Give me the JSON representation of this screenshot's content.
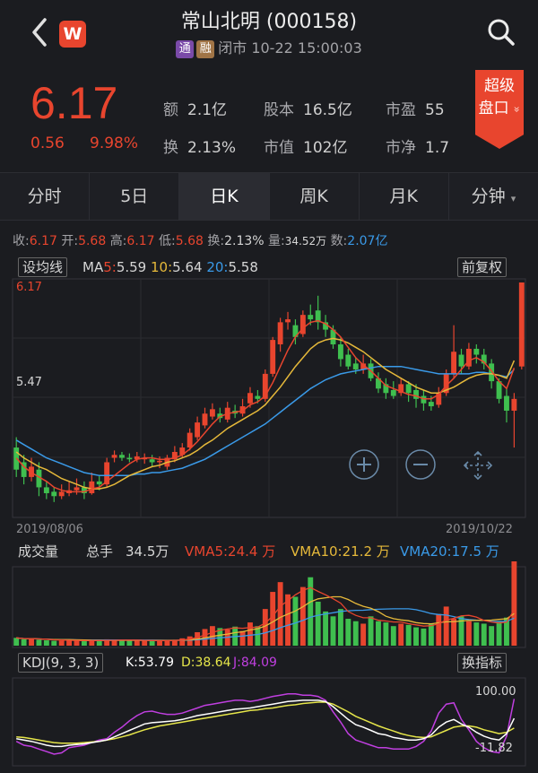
{
  "header": {
    "title": "常山北明 (000158)",
    "tag_tong": "通",
    "tag_rong": "融",
    "status": "闭市 10-22 15:00:03",
    "logo_letter": "W"
  },
  "quote": {
    "price": "6.17",
    "change": "0.56",
    "change_pct": "9.98%",
    "fields": [
      {
        "k": "额",
        "v": "2.1亿"
      },
      {
        "k": "股本",
        "v": "16.5亿"
      },
      {
        "k": "市盈",
        "v": "55"
      },
      {
        "k": "换",
        "v": "2.13%"
      },
      {
        "k": "市值",
        "v": "102亿"
      },
      {
        "k": "市净",
        "v": "1.7"
      }
    ],
    "super_label_1": "超级",
    "super_label_2": "盘口",
    "super_chevron": "»"
  },
  "tabs": [
    "分时",
    "5日",
    "日K",
    "周K",
    "月K",
    "分钟"
  ],
  "active_tab": 2,
  "info": {
    "shou_k": "收:",
    "shou_v": "6.17",
    "kai_k": "开:",
    "kai_v": "5.68",
    "gao_k": "高:",
    "gao_v": "6.17",
    "di_k": "低:",
    "di_v": "5.68",
    "huan_k": "换:",
    "huan_v": "2.13%",
    "liang_k": "量:",
    "liang_v": "34.52万",
    "shu_k": "数:",
    "shu_v": "2.07亿"
  },
  "kline": {
    "setting_label": "设均线",
    "fuquan_label": "前复权",
    "ma_prefix": "MA",
    "ma5_k": "5:",
    "ma5_v": "5.59",
    "ma10_k": "10:",
    "ma10_v": "5.64",
    "ma20_k": "20:",
    "ma20_v": "5.58",
    "y_high": "6.17",
    "y_mid": "5.47",
    "date_start": "2019/08/06",
    "date_end": "2019/10/22"
  },
  "volume": {
    "label": "成交量",
    "total_label": "总手",
    "total_value": "34.5万",
    "vma5": "VMA5:24.4 万",
    "vma10": "VMA10:21.2 万",
    "vma20": "VMA20:17.5 万"
  },
  "kdj": {
    "label": "KDJ(9, 3, 3)",
    "k": "K:53.79",
    "d": "D:38.64",
    "j": "J:84.09",
    "switch_label": "换指标",
    "y_top": "100.00",
    "y_bottom": "-11.82"
  },
  "colors": {
    "up": "#e8452e",
    "down": "#3fbf4f",
    "ma5": "#e8452e",
    "ma10": "#e6b93a",
    "ma20": "#3a9ae8",
    "kdj_k": "#ffffff",
    "kdj_d": "#e6e64a",
    "kdj_j": "#c03fe0",
    "background": "#1b1c20"
  },
  "chart_data": {
    "type": "candlestick",
    "x_range": [
      "2019/08/06",
      "2019/10/22"
    ],
    "ylim": [
      4.6,
      6.17
    ],
    "candles": [
      {
        "o": 5.05,
        "c": 4.9,
        "h": 5.12,
        "l": 4.85
      },
      {
        "o": 4.95,
        "c": 4.85,
        "h": 5.0,
        "l": 4.8
      },
      {
        "o": 4.85,
        "c": 4.92,
        "h": 4.98,
        "l": 4.82
      },
      {
        "o": 4.9,
        "c": 4.78,
        "h": 4.95,
        "l": 4.72
      },
      {
        "o": 4.78,
        "c": 4.74,
        "h": 4.82,
        "l": 4.7
      },
      {
        "o": 4.75,
        "c": 4.72,
        "h": 4.78,
        "l": 4.68
      },
      {
        "o": 4.72,
        "c": 4.75,
        "h": 4.8,
        "l": 4.7
      },
      {
        "o": 4.74,
        "c": 4.76,
        "h": 4.82,
        "l": 4.72
      },
      {
        "o": 4.76,
        "c": 4.78,
        "h": 4.84,
        "l": 4.73
      },
      {
        "o": 4.78,
        "c": 4.74,
        "h": 4.82,
        "l": 4.7
      },
      {
        "o": 4.74,
        "c": 4.82,
        "h": 4.88,
        "l": 4.73
      },
      {
        "o": 4.82,
        "c": 4.8,
        "h": 4.86,
        "l": 4.76
      },
      {
        "o": 4.8,
        "c": 4.95,
        "h": 4.98,
        "l": 4.78
      },
      {
        "o": 4.98,
        "c": 5.0,
        "h": 5.03,
        "l": 4.95
      },
      {
        "o": 5.0,
        "c": 4.98,
        "h": 5.02,
        "l": 4.96
      },
      {
        "o": 4.98,
        "c": 4.97,
        "h": 5.01,
        "l": 4.95
      },
      {
        "o": 4.97,
        "c": 4.99,
        "h": 5.02,
        "l": 4.95
      },
      {
        "o": 4.97,
        "c": 4.98,
        "h": 5.01,
        "l": 4.94
      },
      {
        "o": 4.97,
        "c": 4.95,
        "h": 5.0,
        "l": 4.92
      },
      {
        "o": 4.95,
        "c": 4.96,
        "h": 4.99,
        "l": 4.91
      },
      {
        "o": 4.92,
        "c": 4.98,
        "h": 5.0,
        "l": 4.9
      },
      {
        "o": 4.97,
        "c": 5.02,
        "h": 5.06,
        "l": 4.95
      },
      {
        "o": 5.0,
        "c": 5.05,
        "h": 5.08,
        "l": 4.98
      },
      {
        "o": 5.05,
        "c": 5.15,
        "h": 5.18,
        "l": 5.03
      },
      {
        "o": 5.12,
        "c": 5.22,
        "h": 5.26,
        "l": 5.1
      },
      {
        "o": 5.2,
        "c": 5.28,
        "h": 5.32,
        "l": 5.18
      },
      {
        "o": 5.26,
        "c": 5.31,
        "h": 5.35,
        "l": 5.24
      },
      {
        "o": 5.28,
        "c": 5.25,
        "h": 5.32,
        "l": 5.22
      },
      {
        "o": 5.24,
        "c": 5.32,
        "h": 5.36,
        "l": 5.22
      },
      {
        "o": 5.3,
        "c": 5.28,
        "h": 5.34,
        "l": 5.25
      },
      {
        "o": 5.28,
        "c": 5.33,
        "h": 5.38,
        "l": 5.26
      },
      {
        "o": 5.35,
        "c": 5.42,
        "h": 5.46,
        "l": 5.32
      },
      {
        "o": 5.4,
        "c": 5.38,
        "h": 5.44,
        "l": 5.35
      },
      {
        "o": 5.38,
        "c": 5.55,
        "h": 5.58,
        "l": 5.36
      },
      {
        "o": 5.55,
        "c": 5.78,
        "h": 5.8,
        "l": 5.53
      },
      {
        "o": 5.75,
        "c": 5.9,
        "h": 5.93,
        "l": 5.7
      },
      {
        "o": 5.9,
        "c": 5.92,
        "h": 5.97,
        "l": 5.85
      },
      {
        "o": 5.88,
        "c": 5.8,
        "h": 5.92,
        "l": 5.75
      },
      {
        "o": 5.82,
        "c": 5.95,
        "h": 5.98,
        "l": 5.8
      },
      {
        "o": 5.95,
        "c": 5.92,
        "h": 6.02,
        "l": 5.88
      },
      {
        "o": 5.98,
        "c": 5.9,
        "h": 6.08,
        "l": 5.85
      },
      {
        "o": 5.9,
        "c": 5.85,
        "h": 5.95,
        "l": 5.8
      },
      {
        "o": 5.85,
        "c": 5.75,
        "h": 5.88,
        "l": 5.72
      },
      {
        "o": 5.75,
        "c": 5.65,
        "h": 5.8,
        "l": 5.6
      },
      {
        "o": 5.68,
        "c": 5.6,
        "h": 5.72,
        "l": 5.58
      },
      {
        "o": 5.62,
        "c": 5.58,
        "h": 5.66,
        "l": 5.55
      },
      {
        "o": 5.58,
        "c": 5.62,
        "h": 5.68,
        "l": 5.55
      },
      {
        "o": 5.62,
        "c": 5.52,
        "h": 5.65,
        "l": 5.5
      },
      {
        "o": 5.52,
        "c": 5.45,
        "h": 5.56,
        "l": 5.42
      },
      {
        "o": 5.48,
        "c": 5.42,
        "h": 5.52,
        "l": 5.38
      },
      {
        "o": 5.44,
        "c": 5.4,
        "h": 5.5,
        "l": 5.38
      },
      {
        "o": 5.42,
        "c": 5.48,
        "h": 5.52,
        "l": 5.4
      },
      {
        "o": 5.48,
        "c": 5.42,
        "h": 5.5,
        "l": 5.36
      },
      {
        "o": 5.44,
        "c": 5.38,
        "h": 5.48,
        "l": 5.32
      },
      {
        "o": 5.4,
        "c": 5.35,
        "h": 5.44,
        "l": 5.3
      },
      {
        "o": 5.36,
        "c": 5.33,
        "h": 5.4,
        "l": 5.3
      },
      {
        "o": 5.34,
        "c": 5.42,
        "h": 5.46,
        "l": 5.32
      },
      {
        "o": 5.42,
        "c": 5.55,
        "h": 5.58,
        "l": 5.4
      },
      {
        "o": 5.55,
        "c": 5.7,
        "h": 5.88,
        "l": 5.52
      },
      {
        "o": 5.68,
        "c": 5.6,
        "h": 5.72,
        "l": 5.55
      },
      {
        "o": 5.6,
        "c": 5.72,
        "h": 5.76,
        "l": 5.58
      },
      {
        "o": 5.72,
        "c": 5.68,
        "h": 5.75,
        "l": 5.62
      },
      {
        "o": 5.68,
        "c": 5.62,
        "h": 5.72,
        "l": 5.58
      },
      {
        "o": 5.62,
        "c": 5.5,
        "h": 5.65,
        "l": 5.45
      },
      {
        "o": 5.5,
        "c": 5.38,
        "h": 5.52,
        "l": 5.35
      },
      {
        "o": 5.4,
        "c": 5.3,
        "h": 5.45,
        "l": 5.22
      },
      {
        "o": 5.3,
        "c": 5.38,
        "h": 5.42,
        "l": 5.05
      },
      {
        "o": 5.6,
        "c": 6.17,
        "h": 6.17,
        "l": 5.58
      }
    ],
    "ma5": [
      4.98,
      4.92,
      4.88,
      4.85,
      4.82,
      4.78,
      4.76,
      4.75,
      4.75,
      4.75,
      4.77,
      4.78,
      4.82,
      4.86,
      4.9,
      4.94,
      4.97,
      4.98,
      4.98,
      4.97,
      4.97,
      4.98,
      5.0,
      5.04,
      5.09,
      5.15,
      5.21,
      5.26,
      5.28,
      5.29,
      5.3,
      5.34,
      5.36,
      5.4,
      5.49,
      5.6,
      5.71,
      5.8,
      5.86,
      5.9,
      5.91,
      5.89,
      5.85,
      5.8,
      5.73,
      5.66,
      5.61,
      5.57,
      5.52,
      5.47,
      5.45,
      5.43,
      5.41,
      5.4,
      5.38,
      5.38,
      5.41,
      5.47,
      5.52,
      5.58,
      5.64,
      5.66,
      5.63,
      5.57,
      5.5,
      5.45,
      5.59
    ],
    "ma10": [
      5.02,
      4.98,
      4.95,
      4.92,
      4.9,
      4.87,
      4.84,
      4.82,
      4.8,
      4.78,
      4.77,
      4.77,
      4.78,
      4.8,
      4.83,
      4.86,
      4.88,
      4.9,
      4.92,
      4.93,
      4.95,
      4.96,
      4.98,
      5.0,
      5.03,
      5.07,
      5.1,
      5.14,
      5.18,
      5.21,
      5.24,
      5.27,
      5.3,
      5.34,
      5.4,
      5.46,
      5.53,
      5.6,
      5.66,
      5.72,
      5.76,
      5.78,
      5.79,
      5.78,
      5.76,
      5.73,
      5.7,
      5.66,
      5.62,
      5.58,
      5.55,
      5.52,
      5.49,
      5.46,
      5.44,
      5.42,
      5.42,
      5.44,
      5.46,
      5.49,
      5.52,
      5.54,
      5.55,
      5.55,
      5.54,
      5.52,
      5.64
    ],
    "ma20": [
      5.1,
      5.07,
      5.04,
      5.01,
      4.98,
      4.96,
      4.94,
      4.92,
      4.9,
      4.88,
      4.87,
      4.86,
      4.86,
      4.86,
      4.86,
      4.86,
      4.87,
      4.87,
      4.88,
      4.88,
      4.89,
      4.9,
      4.91,
      4.93,
      4.95,
      4.97,
      5.0,
      5.03,
      5.06,
      5.09,
      5.12,
      5.15,
      5.18,
      5.21,
      5.25,
      5.29,
      5.33,
      5.37,
      5.41,
      5.45,
      5.48,
      5.51,
      5.53,
      5.55,
      5.56,
      5.57,
      5.58,
      5.59,
      5.6,
      5.6,
      5.6,
      5.6,
      5.59,
      5.58,
      5.57,
      5.56,
      5.55,
      5.55,
      5.55,
      5.55,
      5.55,
      5.56,
      5.56,
      5.55,
      5.54,
      5.53,
      5.58
    ],
    "volume_wan": [
      3.2,
      2.6,
      2.8,
      2.4,
      2.2,
      2.0,
      2.1,
      2.3,
      2.0,
      1.9,
      2.2,
      2.0,
      2.6,
      2.4,
      2.2,
      2.1,
      2.0,
      2.1,
      2.0,
      2.0,
      2.2,
      2.3,
      3.0,
      3.8,
      5.5,
      6.8,
      8.0,
      7.2,
      6.6,
      7.8,
      6.0,
      9.5,
      8.0,
      15.0,
      22.0,
      26.0,
      21.0,
      20.0,
      24.0,
      28.0,
      18.0,
      14.0,
      12.0,
      15.0,
      11.0,
      10.0,
      9.0,
      12.0,
      10.0,
      9.5,
      8.0,
      9.0,
      8.5,
      7.5,
      7.0,
      9.0,
      13.0,
      16.0,
      11.0,
      12.0,
      10.0,
      9.5,
      9.0,
      8.0,
      10.0,
      11.5,
      34.5
    ],
    "kdj_k": [
      22,
      20,
      18,
      15,
      12,
      10,
      10,
      12,
      13,
      14,
      16,
      18,
      20,
      25,
      30,
      35,
      40,
      45,
      47,
      48,
      49,
      50,
      52,
      55,
      58,
      60,
      62,
      64,
      66,
      68,
      69,
      70,
      72,
      74,
      76,
      78,
      80,
      81,
      82,
      82,
      82,
      80,
      72,
      62,
      52,
      44,
      40,
      35,
      30,
      28,
      24,
      22,
      20,
      20,
      22,
      28,
      40,
      48,
      52,
      45,
      40,
      32,
      26,
      22,
      20,
      30,
      53.79
    ],
    "kdj_d": [
      25,
      24,
      22,
      20,
      18,
      16,
      15,
      15,
      15,
      16,
      17,
      18,
      20,
      22,
      25,
      28,
      32,
      36,
      39,
      42,
      44,
      46,
      48,
      50,
      52,
      54,
      56,
      58,
      60,
      62,
      64,
      66,
      67,
      69,
      70,
      72,
      74,
      75,
      77,
      78,
      79,
      79,
      76,
      70,
      64,
      57,
      52,
      47,
      42,
      38,
      34,
      30,
      27,
      25,
      24,
      25,
      30,
      35,
      40,
      42,
      42,
      40,
      36,
      33,
      30,
      32,
      38.64
    ],
    "kdj_j": [
      18,
      12,
      10,
      6,
      2,
      -2,
      0,
      8,
      10,
      12,
      16,
      20,
      22,
      32,
      40,
      50,
      58,
      64,
      65,
      62,
      60,
      60,
      62,
      66,
      70,
      74,
      76,
      78,
      80,
      82,
      82,
      80,
      82,
      85,
      88,
      90,
      92,
      92,
      90,
      90,
      88,
      82,
      64,
      48,
      30,
      20,
      16,
      12,
      8,
      8,
      6,
      6,
      6,
      10,
      18,
      34,
      62,
      76,
      78,
      52,
      36,
      18,
      8,
      2,
      0,
      26,
      84.09
    ]
  }
}
